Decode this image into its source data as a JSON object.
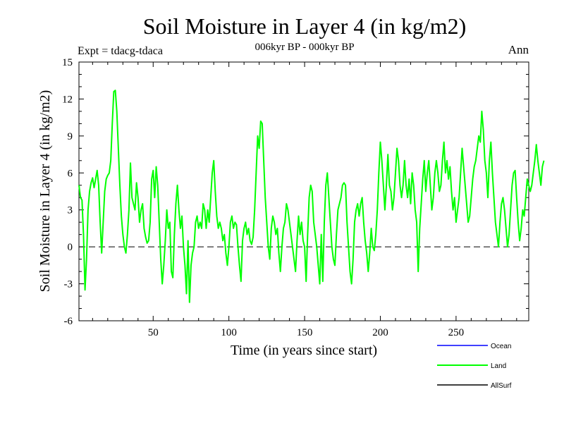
{
  "chart_data": {
    "type": "line",
    "title": "Soil Moisture in Layer 4 (in kg/m2)",
    "subtitle": "006kyr BP - 000kyr BP",
    "experiment": "Expt = tdacg-tdaca",
    "period": "Ann",
    "xlabel": "Time (in years since start)",
    "ylabel": "Soil Moisture in Layer 4 (in kg/m2)",
    "xlim": [
      1,
      298
    ],
    "ylim": [
      -6,
      15
    ],
    "x_ticks": [
      50,
      100,
      150,
      200,
      250
    ],
    "y_ticks": [
      -6,
      -3,
      0,
      3,
      6,
      9,
      12,
      15
    ],
    "reference_line": 0,
    "legend": [
      {
        "name": "Ocean",
        "color": "#0000ff"
      },
      {
        "name": "Land",
        "color": "#00ff00"
      },
      {
        "name": "AllSurf",
        "color": "#000000"
      }
    ],
    "series": [
      {
        "name": "Land",
        "color": "#00ff00",
        "x_start": 1,
        "x_step": 1,
        "values": [
          5.0,
          4.0,
          3.8,
          1.0,
          -3.5,
          -1.0,
          3.0,
          4.5,
          5.2,
          5.6,
          4.8,
          5.5,
          6.2,
          5.0,
          2.0,
          -0.5,
          2.0,
          4.5,
          5.5,
          5.8,
          6.0,
          7.0,
          10.0,
          12.6,
          12.7,
          11.0,
          8.0,
          5.0,
          2.5,
          1.0,
          0.0,
          -0.5,
          1.0,
          3.0,
          6.8,
          4.0,
          3.5,
          3.0,
          5.2,
          4.0,
          2.0,
          3.0,
          3.5,
          1.5,
          0.8,
          0.3,
          0.5,
          2.0,
          5.5,
          6.2,
          4.0,
          6.5,
          5.0,
          2.0,
          -1.0,
          -3.0,
          -1.5,
          0.5,
          3.0,
          1.5,
          2.0,
          -2.0,
          -2.5,
          1.0,
          3.5,
          5.0,
          3.0,
          1.5,
          2.5,
          0.0,
          -1.5,
          -3.8,
          0.5,
          -4.5,
          -1.5,
          -0.5,
          0.0,
          2.0,
          2.5,
          1.5,
          2.0,
          1.5,
          3.5,
          3.0,
          1.5,
          3.0,
          2.0,
          4.0,
          6.0,
          7.0,
          4.5,
          2.5,
          1.5,
          2.0,
          1.5,
          0.5,
          1.0,
          -0.5,
          -1.5,
          0.0,
          2.0,
          2.5,
          1.5,
          2.0,
          1.8,
          0.0,
          -1.5,
          -2.8,
          0.5,
          1.5,
          2.0,
          1.0,
          1.5,
          0.5,
          0.2,
          0.8,
          3.0,
          6.0,
          9.0,
          8.0,
          10.2,
          10.0,
          7.0,
          4.0,
          2.0,
          0.0,
          -1.0,
          1.5,
          2.5,
          2.0,
          1.0,
          1.5,
          -0.5,
          -2.0,
          0.0,
          1.5,
          2.0,
          3.5,
          3.0,
          2.0,
          1.0,
          0.0,
          -1.0,
          -2.0,
          0.5,
          2.5,
          1.0,
          2.0,
          0.5,
          0.0,
          -2.8,
          1.0,
          4.0,
          5.0,
          4.5,
          2.0,
          1.0,
          0.0,
          -1.5,
          -3.0,
          1.0,
          -2.8,
          2.0,
          5.0,
          6.0,
          4.0,
          2.0,
          0.0,
          -1.0,
          -1.5,
          1.0,
          3.0,
          3.5,
          4.0,
          5.0,
          5.2,
          5.0,
          2.0,
          0.0,
          -2.0,
          -3.0,
          -1.0,
          2.0,
          3.0,
          3.5,
          2.5,
          3.5,
          4.0,
          2.0,
          0.5,
          -0.5,
          -2.0,
          -0.5,
          1.5,
          0.0,
          -0.3,
          1.0,
          3.0,
          6.0,
          8.5,
          7.0,
          5.0,
          3.0,
          5.0,
          7.5,
          5.0,
          4.5,
          3.0,
          4.0,
          6.0,
          8.0,
          7.0,
          5.0,
          4.0,
          5.0,
          7.0,
          5.0,
          4.0,
          5.5,
          3.5,
          6.0,
          5.0,
          3.0,
          2.0,
          -2.0,
          1.5,
          3.5,
          5.5,
          7.0,
          4.5,
          6.0,
          7.0,
          5.0,
          3.0,
          4.0,
          6.0,
          7.0,
          6.0,
          4.5,
          5.0,
          7.0,
          8.5,
          6.0,
          7.0,
          5.5,
          6.5,
          4.5,
          3.0,
          4.0,
          2.0,
          3.0,
          4.0,
          6.0,
          8.0,
          6.5,
          5.0,
          3.5,
          2.0,
          2.5,
          4.0,
          5.5,
          6.5,
          7.0,
          8.0,
          9.0,
          8.5,
          11.0,
          9.5,
          7.0,
          6.0,
          4.0,
          7.0,
          8.5,
          6.0,
          4.0,
          2.0,
          1.0,
          0.0,
          2.0,
          3.5,
          4.0,
          3.0,
          1.5,
          0.0,
          1.0,
          3.0,
          5.0,
          6.0,
          6.2,
          4.0,
          2.0,
          0.5,
          1.5,
          3.0,
          2.5,
          4.0,
          5.5,
          5.0,
          4.5,
          5.0,
          6.0,
          7.0,
          8.3,
          7.0,
          6.0,
          5.0,
          6.5,
          7.0
        ]
      }
    ]
  }
}
